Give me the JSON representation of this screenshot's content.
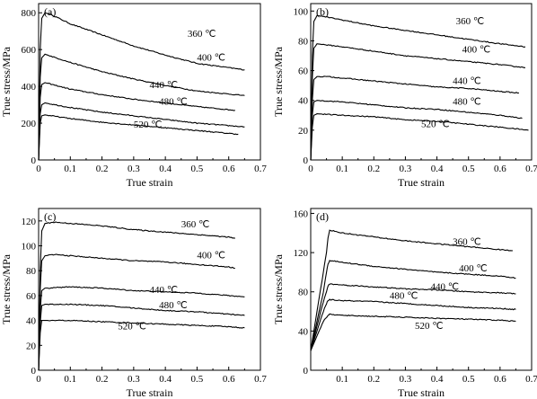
{
  "chart_data": [
    {
      "panel": "(a)",
      "type": "line",
      "xlabel": "True strain",
      "ylabel": "True stress/MPa",
      "xlim": [
        0,
        0.7
      ],
      "ylim": [
        0,
        850
      ],
      "xticks": [
        0,
        0.1,
        0.2,
        0.3,
        0.4,
        0.5,
        0.6,
        0.7
      ],
      "yticks": [
        0,
        200,
        400,
        600,
        800
      ],
      "series": [
        {
          "name": "360 ℃",
          "x": [
            0,
            0.005,
            0.01,
            0.02,
            0.04,
            0.1,
            0.2,
            0.3,
            0.4,
            0.5,
            0.65
          ],
          "y": [
            0,
            600,
            770,
            800,
            790,
            740,
            680,
            620,
            570,
            525,
            490
          ],
          "label_at": [
            0.47,
            670
          ]
        },
        {
          "name": "400 ℃",
          "x": [
            0,
            0.005,
            0.01,
            0.02,
            0.1,
            0.2,
            0.3,
            0.4,
            0.5,
            0.65
          ],
          "y": [
            0,
            450,
            555,
            575,
            530,
            480,
            440,
            405,
            375,
            350
          ],
          "label_at": [
            0.5,
            540
          ]
        },
        {
          "name": "440 ℃",
          "x": [
            0,
            0.005,
            0.01,
            0.02,
            0.1,
            0.2,
            0.3,
            0.4,
            0.5,
            0.62
          ],
          "y": [
            0,
            340,
            410,
            420,
            385,
            355,
            330,
            310,
            290,
            270
          ],
          "label_at": [
            0.35,
            390
          ]
        },
        {
          "name": "480 ℃",
          "x": [
            0,
            0.005,
            0.01,
            0.02,
            0.1,
            0.2,
            0.3,
            0.4,
            0.5,
            0.65
          ],
          "y": [
            0,
            250,
            300,
            310,
            285,
            260,
            240,
            220,
            200,
            180
          ],
          "label_at": [
            0.38,
            300
          ]
        },
        {
          "name": "520 ℃",
          "x": [
            0,
            0.005,
            0.01,
            0.02,
            0.1,
            0.2,
            0.3,
            0.4,
            0.5,
            0.63
          ],
          "y": [
            0,
            200,
            240,
            245,
            225,
            205,
            190,
            175,
            160,
            140
          ],
          "label_at": [
            0.3,
            175
          ]
        }
      ]
    },
    {
      "panel": "(b)",
      "type": "line",
      "xlabel": "True strain",
      "ylabel": "True stress/MPa",
      "xlim": [
        0,
        0.7
      ],
      "ylim": [
        0,
        105
      ],
      "xticks": [
        0,
        0.1,
        0.2,
        0.3,
        0.4,
        0.5,
        0.6,
        0.7
      ],
      "yticks": [
        0,
        20,
        40,
        60,
        80,
        100
      ],
      "series": [
        {
          "name": "360 ℃",
          "x": [
            0,
            0.005,
            0.01,
            0.02,
            0.05,
            0.1,
            0.2,
            0.3,
            0.4,
            0.5,
            0.6,
            0.68
          ],
          "y": [
            0,
            70,
            93,
            97,
            96,
            94,
            90,
            87,
            84,
            81,
            78,
            76
          ],
          "label_at": [
            0.46,
            91
          ]
        },
        {
          "name": "400 ℃",
          "x": [
            0,
            0.005,
            0.01,
            0.02,
            0.1,
            0.2,
            0.3,
            0.4,
            0.5,
            0.6,
            0.68
          ],
          "y": [
            0,
            55,
            75,
            78,
            76,
            73,
            70,
            68,
            66,
            64,
            62
          ],
          "label_at": [
            0.48,
            72
          ]
        },
        {
          "name": "440 ℃",
          "x": [
            0,
            0.005,
            0.01,
            0.02,
            0.05,
            0.1,
            0.2,
            0.3,
            0.4,
            0.5,
            0.6,
            0.66
          ],
          "y": [
            0,
            40,
            54,
            56,
            56,
            55,
            53,
            51,
            49,
            48,
            46,
            45
          ],
          "label_at": [
            0.45,
            51
          ]
        },
        {
          "name": "480 ℃",
          "x": [
            0,
            0.005,
            0.01,
            0.02,
            0.1,
            0.2,
            0.3,
            0.4,
            0.5,
            0.6,
            0.67
          ],
          "y": [
            0,
            30,
            39,
            40,
            39,
            37,
            35,
            34,
            32,
            30,
            28
          ],
          "label_at": [
            0.45,
            37
          ]
        },
        {
          "name": "520 ℃",
          "x": [
            0,
            0.005,
            0.01,
            0.02,
            0.1,
            0.2,
            0.3,
            0.4,
            0.5,
            0.6,
            0.69
          ],
          "y": [
            0,
            22,
            30,
            31,
            30,
            29,
            27,
            26,
            24,
            22,
            20
          ],
          "label_at": [
            0.35,
            22
          ]
        }
      ]
    },
    {
      "panel": "(c)",
      "type": "line",
      "xlabel": "True strain",
      "ylabel": "True stress/MPa",
      "xlim": [
        0,
        0.7
      ],
      "ylim": [
        0,
        130
      ],
      "xticks": [
        0,
        0.1,
        0.2,
        0.3,
        0.4,
        0.5,
        0.6,
        0.7
      ],
      "yticks": [
        0,
        20,
        40,
        60,
        80,
        100,
        120
      ],
      "series": [
        {
          "name": "360 ℃",
          "x": [
            0,
            0.005,
            0.01,
            0.02,
            0.05,
            0.1,
            0.2,
            0.3,
            0.4,
            0.5,
            0.6,
            0.62
          ],
          "y": [
            0,
            80,
            112,
            118,
            119,
            118,
            116,
            113,
            111,
            109,
            107,
            106
          ],
          "label_at": [
            0.45,
            115
          ]
        },
        {
          "name": "400 ℃",
          "x": [
            0,
            0.005,
            0.01,
            0.02,
            0.05,
            0.1,
            0.2,
            0.3,
            0.4,
            0.5,
            0.6,
            0.62
          ],
          "y": [
            0,
            65,
            88,
            92,
            93,
            92,
            90,
            88,
            87,
            85,
            83,
            82
          ],
          "label_at": [
            0.5,
            90
          ]
        },
        {
          "name": "440 ℃",
          "x": [
            0,
            0.005,
            0.01,
            0.02,
            0.1,
            0.2,
            0.3,
            0.4,
            0.5,
            0.6,
            0.65
          ],
          "y": [
            0,
            48,
            64,
            66,
            67,
            66,
            64,
            63,
            62,
            60,
            59
          ],
          "label_at": [
            0.35,
            62
          ]
        },
        {
          "name": "480 ℃",
          "x": [
            0,
            0.005,
            0.01,
            0.02,
            0.1,
            0.2,
            0.3,
            0.4,
            0.5,
            0.6,
            0.65
          ],
          "y": [
            0,
            38,
            52,
            53,
            53,
            52,
            50,
            48,
            47,
            45,
            44
          ],
          "label_at": [
            0.38,
            50
          ]
        },
        {
          "name": "520 ℃",
          "x": [
            0,
            0.005,
            0.01,
            0.02,
            0.1,
            0.2,
            0.3,
            0.4,
            0.5,
            0.6,
            0.65
          ],
          "y": [
            0,
            30,
            40,
            40,
            40,
            39,
            38,
            37,
            36,
            35,
            34
          ],
          "label_at": [
            0.25,
            33
          ]
        }
      ]
    },
    {
      "panel": "(d)",
      "type": "line",
      "xlabel": "True strain",
      "ylabel": "True stress/MPa",
      "xlim": [
        0,
        0.7
      ],
      "ylim": [
        0,
        165
      ],
      "xticks": [
        0.1,
        0.2,
        0.3,
        0.4,
        0.5,
        0.6,
        0.7
      ],
      "yticks": [
        0,
        40,
        80,
        120,
        160
      ],
      "series": [
        {
          "name": "360 ℃",
          "x": [
            0,
            0.04,
            0.05,
            0.055,
            0.06,
            0.1,
            0.2,
            0.3,
            0.4,
            0.5,
            0.6,
            0.64
          ],
          "y": [
            20,
            100,
            120,
            135,
            143,
            140,
            136,
            132,
            129,
            126,
            123,
            122
          ],
          "label_at": [
            0.45,
            128
          ]
        },
        {
          "name": "400 ℃",
          "x": [
            0,
            0.04,
            0.05,
            0.055,
            0.06,
            0.1,
            0.2,
            0.3,
            0.4,
            0.5,
            0.6,
            0.65
          ],
          "y": [
            20,
            80,
            100,
            108,
            112,
            110,
            106,
            103,
            100,
            98,
            96,
            94
          ],
          "label_at": [
            0.47,
            101
          ]
        },
        {
          "name": "440 ℃",
          "x": [
            0,
            0.04,
            0.05,
            0.055,
            0.06,
            0.1,
            0.2,
            0.3,
            0.4,
            0.5,
            0.6,
            0.65
          ],
          "y": [
            20,
            70,
            80,
            86,
            88,
            87,
            85,
            83,
            82,
            80,
            79,
            78
          ],
          "label_at": [
            0.38,
            82
          ]
        },
        {
          "name": "480 ℃",
          "x": [
            0,
            0.04,
            0.05,
            0.055,
            0.06,
            0.1,
            0.2,
            0.3,
            0.4,
            0.5,
            0.6,
            0.65
          ],
          "y": [
            20,
            60,
            68,
            71,
            72,
            71,
            70,
            68,
            66,
            64,
            63,
            62
          ],
          "label_at": [
            0.25,
            73
          ]
        },
        {
          "name": "520 ℃",
          "x": [
            0,
            0.04,
            0.05,
            0.055,
            0.06,
            0.1,
            0.2,
            0.3,
            0.4,
            0.5,
            0.6,
            0.65
          ],
          "y": [
            20,
            50,
            54,
            56,
            57,
            56,
            55,
            54,
            53,
            52,
            51,
            50
          ],
          "label_at": [
            0.33,
            42
          ]
        }
      ]
    }
  ]
}
